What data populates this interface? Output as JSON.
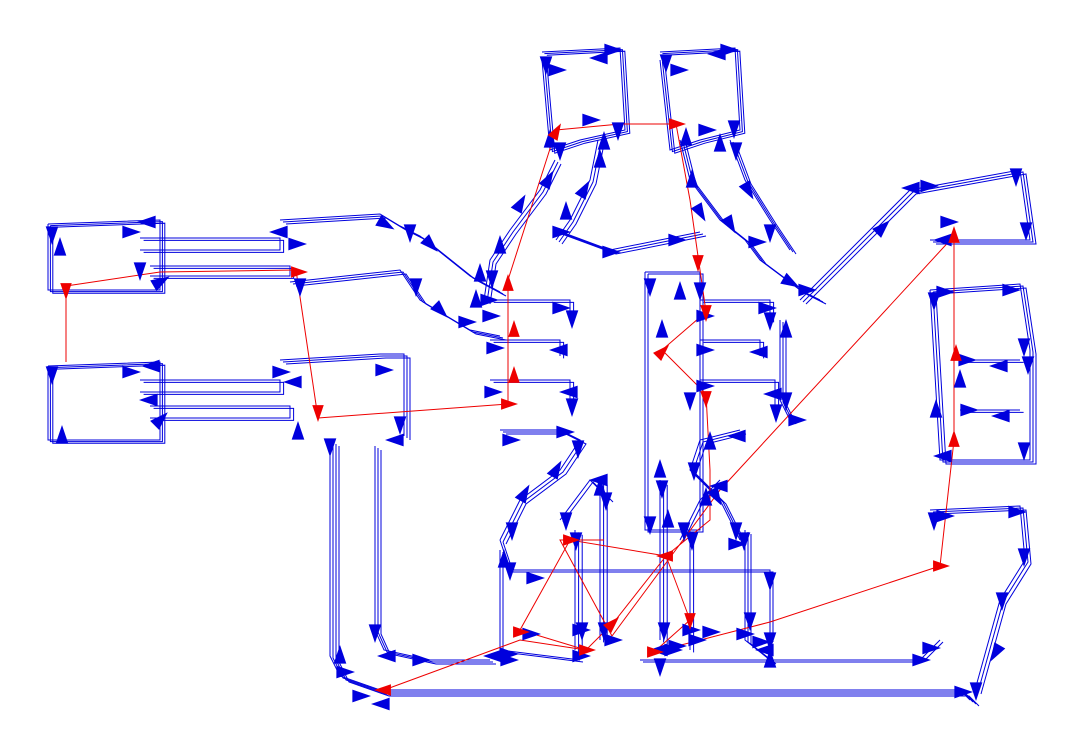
{
  "diagram": {
    "kind": "toolpath-plot",
    "colors": {
      "background": "#ffffff",
      "cut_move": "#0000dd",
      "travel_move": "#ee0000"
    },
    "legend": []
  }
}
